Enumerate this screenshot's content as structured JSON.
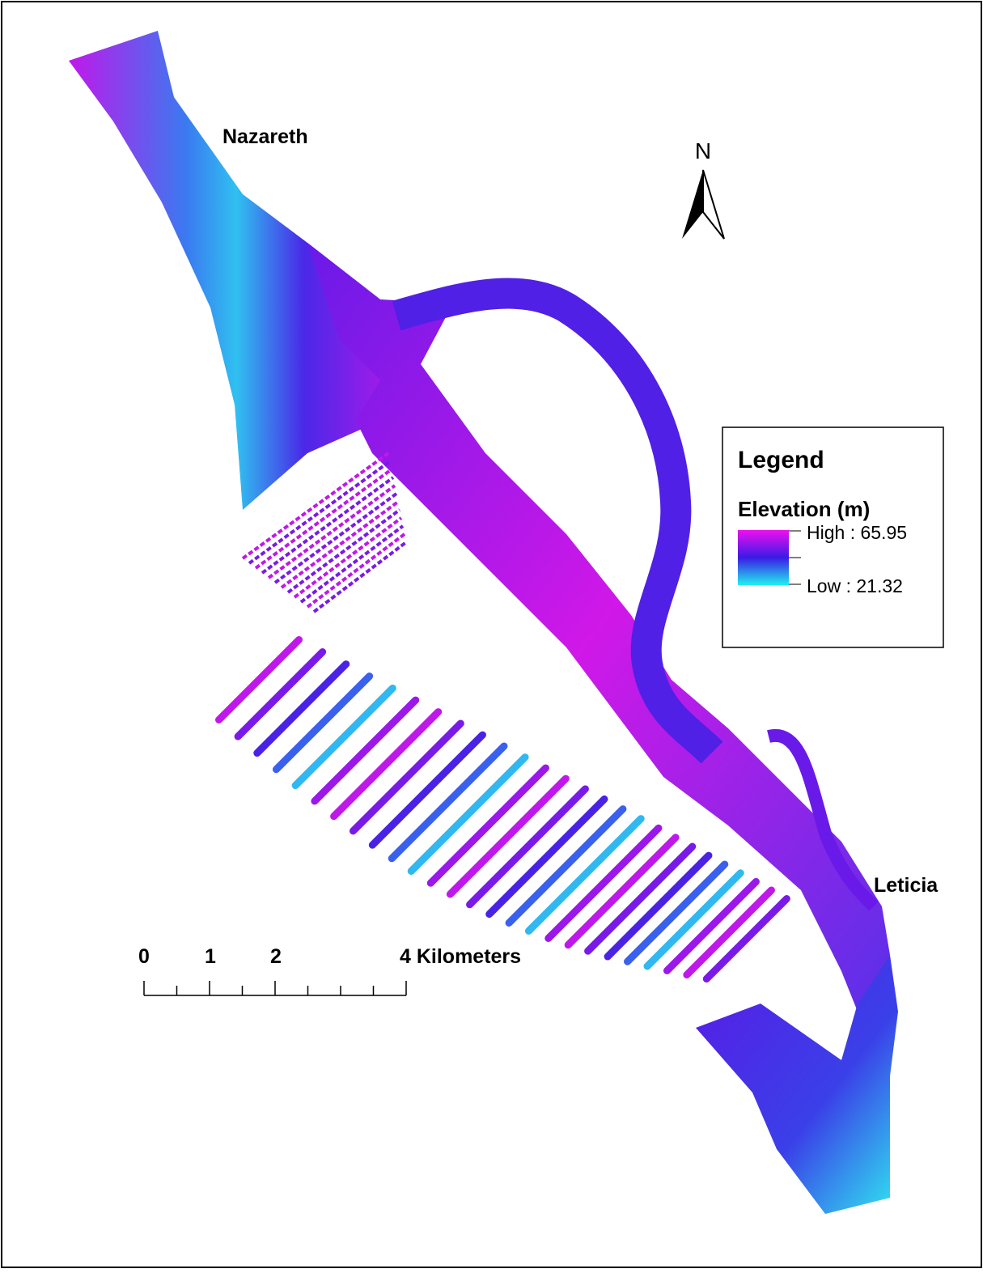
{
  "map": {
    "places": [
      "Nazareth",
      "Leticia"
    ],
    "north_label": "N",
    "legend": {
      "title": "Legend",
      "field": "Elevation (m)",
      "high": "High : 65.95",
      "low": "Low : 21.32"
    },
    "scale_bar": {
      "labels": [
        "0",
        "1",
        "2",
        "4 Kilometers"
      ]
    }
  }
}
